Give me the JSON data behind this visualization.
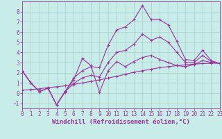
{
  "title": "",
  "xlabel": "Windchill (Refroidissement éolien,°C)",
  "background_color": "#c8ece8",
  "grid_color": "#aacece",
  "line_color": "#993399",
  "xlim": [
    0,
    23
  ],
  "ylim": [
    -1.5,
    9.0
  ],
  "xticks": [
    0,
    1,
    2,
    3,
    4,
    5,
    6,
    7,
    8,
    9,
    10,
    11,
    12,
    13,
    14,
    15,
    16,
    17,
    18,
    19,
    20,
    21,
    22,
    23
  ],
  "yticks": [
    -1,
    0,
    1,
    2,
    3,
    4,
    5,
    6,
    7,
    8
  ],
  "line1_x": [
    0,
    1,
    2,
    3,
    4,
    5,
    6,
    7,
    8,
    9,
    10,
    11,
    12,
    13,
    14,
    15,
    16,
    17,
    18,
    19,
    20,
    21,
    22,
    23
  ],
  "line1_y": [
    2.2,
    1.0,
    0.15,
    0.5,
    -1.15,
    0.1,
    1.5,
    2.2,
    2.6,
    2.5,
    4.7,
    6.2,
    6.5,
    7.2,
    8.6,
    7.2,
    7.2,
    6.7,
    5.1,
    3.3,
    3.2,
    4.2,
    3.2,
    2.9
  ],
  "line2_x": [
    0,
    1,
    2,
    3,
    4,
    5,
    6,
    7,
    8,
    9,
    10,
    11,
    12,
    13,
    14,
    15,
    16,
    17,
    18,
    19,
    20,
    21,
    22,
    23
  ],
  "line2_y": [
    2.2,
    1.0,
    0.15,
    0.5,
    -1.15,
    0.2,
    1.3,
    3.4,
    2.7,
    0.1,
    2.2,
    3.1,
    2.6,
    3.1,
    3.5,
    3.7,
    3.3,
    3.0,
    2.7,
    2.6,
    2.8,
    3.2,
    3.0,
    2.9
  ],
  "line3_x": [
    0,
    1,
    2,
    3,
    4,
    5,
    6,
    7,
    8,
    9,
    10,
    11,
    12,
    13,
    14,
    15,
    16,
    17,
    18,
    19,
    20,
    21,
    22,
    23
  ],
  "line3_y": [
    2.2,
    1.0,
    0.15,
    0.5,
    -1.15,
    0.15,
    0.95,
    1.5,
    1.75,
    1.6,
    3.0,
    4.0,
    4.2,
    4.8,
    5.8,
    5.2,
    5.5,
    5.0,
    4.0,
    3.0,
    3.0,
    3.7,
    3.1,
    2.9
  ],
  "line4_x": [
    0,
    1,
    2,
    3,
    4,
    5,
    6,
    7,
    8,
    9,
    10,
    11,
    12,
    13,
    14,
    15,
    16,
    17,
    18,
    19,
    20,
    21,
    22,
    23
  ],
  "line4_y": [
    0.3,
    0.35,
    0.42,
    0.55,
    0.62,
    0.72,
    0.85,
    1.0,
    1.15,
    1.3,
    1.48,
    1.65,
    1.85,
    2.05,
    2.2,
    2.35,
    2.5,
    2.6,
    2.7,
    2.78,
    2.85,
    2.9,
    2.93,
    2.96
  ],
  "tick_fontsize": 5.5,
  "label_fontsize": 6.5,
  "marker": "+"
}
